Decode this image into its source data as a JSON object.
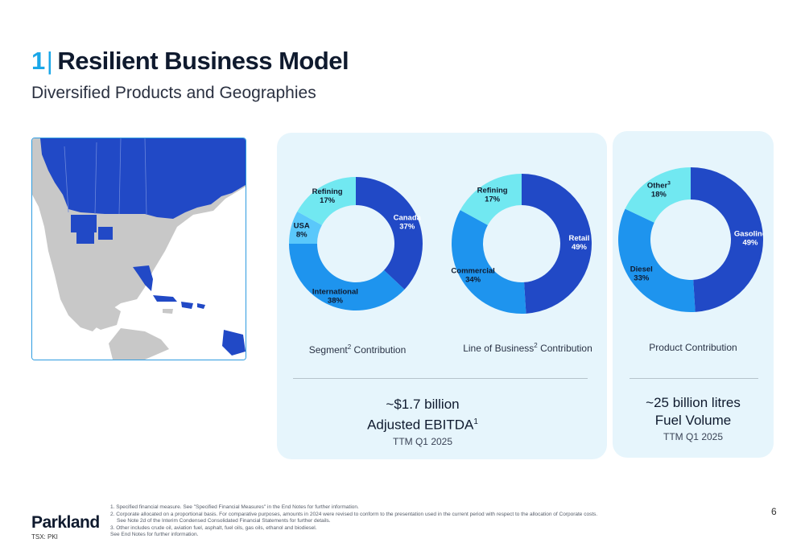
{
  "header": {
    "number": "1",
    "separator": "|",
    "title": "Resilient Business Model",
    "subtitle": "Diversified Products and Geographies"
  },
  "map": {
    "label": "map"
  },
  "charts": {
    "segment": {
      "caption_pre": "Segment",
      "caption_sup": "2",
      "caption_post": " Contribution",
      "slices": [
        {
          "name": "Canada",
          "pct": "37%",
          "value": 37,
          "color": "#2149c6",
          "text": "#ffffff"
        },
        {
          "name": "International",
          "pct": "38%",
          "value": 38,
          "color": "#1e94ee",
          "text": "#0f1a2e"
        },
        {
          "name": "USA",
          "pct": "8%",
          "value": 8,
          "color": "#5ac8fb",
          "text": "#0f1a2e"
        },
        {
          "name": "Refining",
          "pct": "17%",
          "value": 17,
          "color": "#71e8f1",
          "text": "#0f1a2e"
        }
      ]
    },
    "business": {
      "caption_pre": "Line of Business",
      "caption_sup": "2",
      "caption_post": " Contribution",
      "slices": [
        {
          "name": "Retail",
          "pct": "49%",
          "value": 49,
          "color": "#2149c6",
          "text": "#ffffff"
        },
        {
          "name": "Commercial",
          "pct": "34%",
          "value": 34,
          "color": "#1e94ee",
          "text": "#0f1a2e"
        },
        {
          "name": "Refining",
          "pct": "17%",
          "value": 17,
          "color": "#71e8f1",
          "text": "#0f1a2e"
        }
      ]
    },
    "product": {
      "caption": "Product Contribution",
      "slices": [
        {
          "name": "Gasoline",
          "pct": "49%",
          "value": 49,
          "color": "#2149c6",
          "text": "#ffffff"
        },
        {
          "name": "Diesel",
          "pct": "33%",
          "value": 33,
          "color": "#1e94ee",
          "text": "#0f1a2e"
        },
        {
          "name": "Other",
          "sup": "3",
          "pct": "18%",
          "value": 18,
          "color": "#71e8f1",
          "text": "#0f1a2e"
        }
      ]
    }
  },
  "metrics": {
    "ebitda": {
      "line1": "~$1.7 billion",
      "line2": "Adjusted EBITDA",
      "line2_sup": "1",
      "line3": "TTM Q1 2025"
    },
    "fuel": {
      "line1": "~25 billion litres",
      "line2": "Fuel Volume",
      "line3": "TTM Q1 2025"
    }
  },
  "footer": {
    "logo": "Parkland",
    "ticker": "TSX: PKI",
    "page": "6",
    "notes": [
      "1. Specified financial measure. See \"Specified Financial Measures\" in the End Notes for further information.",
      "2. Corporate allocated on a proportional basis. For comparative purposes, amounts in 2024 were revised to conform to the presentation used in the current period with respect to the allocation of Corporate costs.",
      "See Note 2d of the Interim Condensed Consolidated Financial Statements for further details.",
      "3. Other includes crude oil, aviation fuel, asphalt, fuel oils, gas oils, ethanol and biodiesel.",
      "See End Notes for further information."
    ]
  },
  "colors": {
    "accent": "#1aa7e8",
    "dark_blue": "#2149c6",
    "mid_blue": "#1e94ee",
    "light_blue": "#5ac8fb",
    "cyan": "#71e8f1",
    "panel": "#e6f5fc"
  }
}
